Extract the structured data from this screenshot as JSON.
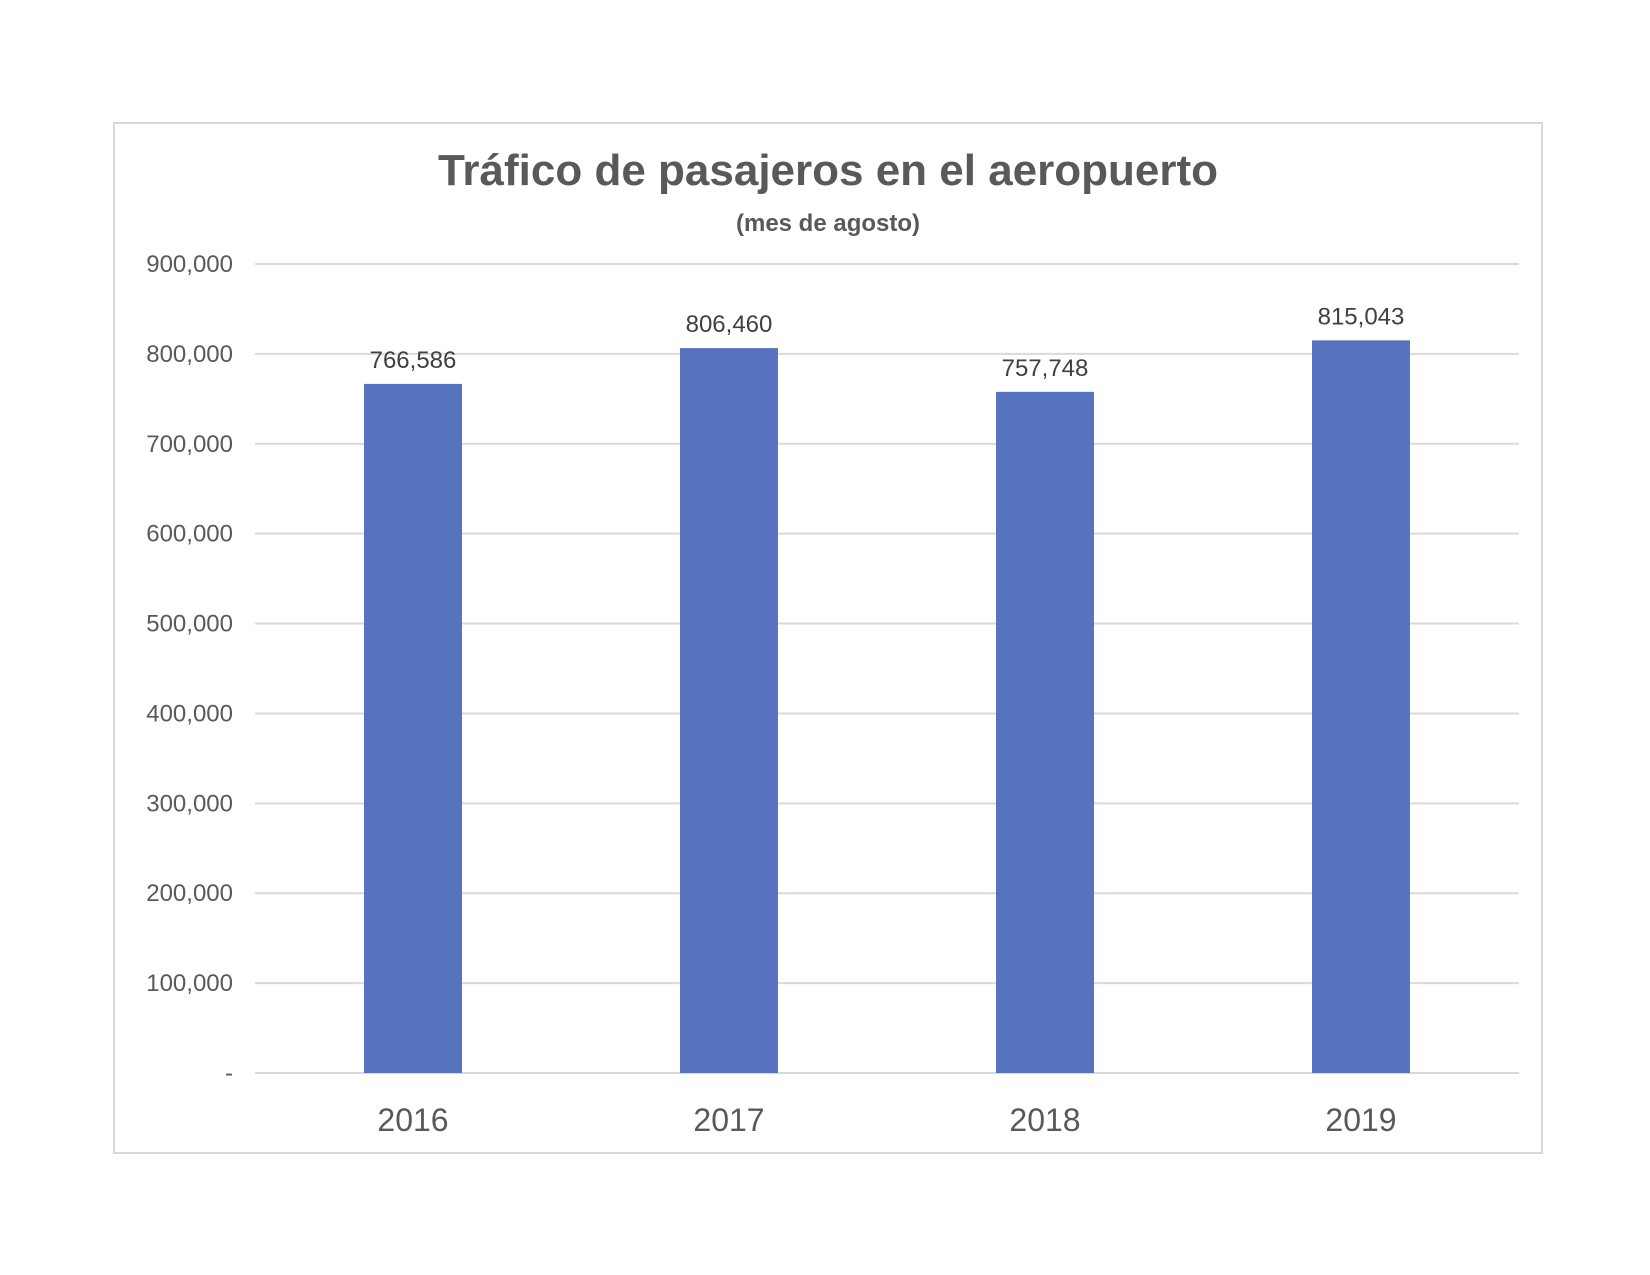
{
  "chart_data": {
    "type": "bar",
    "title": "Tráfico de pasajeros en el aeropuerto",
    "subtitle": "(mes de agosto)",
    "categories": [
      "2016",
      "2017",
      "2018",
      "2019"
    ],
    "values": [
      766586,
      806460,
      757748,
      815043
    ],
    "value_labels": [
      "766,586",
      "806,460",
      "757,748",
      "815,043"
    ],
    "ylim": [
      0,
      900000
    ],
    "yticks": [
      0,
      100000,
      200000,
      300000,
      400000,
      500000,
      600000,
      700000,
      800000,
      900000
    ],
    "ytick_labels": [
      "-",
      "100,000",
      "200,000",
      "300,000",
      "400,000",
      "500,000",
      "600,000",
      "700,000",
      "800,000",
      "900,000"
    ],
    "grid": true,
    "legend": "none",
    "colors": {
      "bar": "#5773c0",
      "grid": "#d9d9d9",
      "axis": "#d9d9d9",
      "text": "#595959"
    }
  }
}
